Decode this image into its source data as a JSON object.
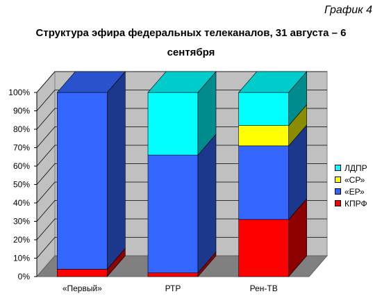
{
  "corner_label": "График 4",
  "title_line1": "Структура эфира федеральных телеканалов, 31 августа – 6",
  "title_line2": "сентября",
  "chart_data": {
    "type": "bar",
    "stacked": true,
    "three_d": true,
    "categories": [
      "«Первый»",
      "РТР",
      "Рен-ТВ"
    ],
    "series": [
      {
        "name": "КПРФ",
        "values": [
          4,
          2,
          31
        ],
        "color": "#ff0000"
      },
      {
        "name": "«ЕР»",
        "values": [
          96,
          64,
          40
        ],
        "color": "#3366ff"
      },
      {
        "name": "«СР»",
        "values": [
          0,
          0,
          11
        ],
        "color": "#ffff00"
      },
      {
        "name": "ЛДПР",
        "values": [
          0,
          34,
          18
        ],
        "color": "#00ffff"
      }
    ],
    "ylim": [
      0,
      100
    ],
    "yticks": [
      "0%",
      "10%",
      "20%",
      "30%",
      "40%",
      "50%",
      "60%",
      "70%",
      "80%",
      "90%",
      "100%"
    ],
    "legend_order": [
      "ЛДПР",
      "«СР»",
      "«ЕР»",
      "КПРФ"
    ],
    "legend_position": "right",
    "grid": true
  }
}
